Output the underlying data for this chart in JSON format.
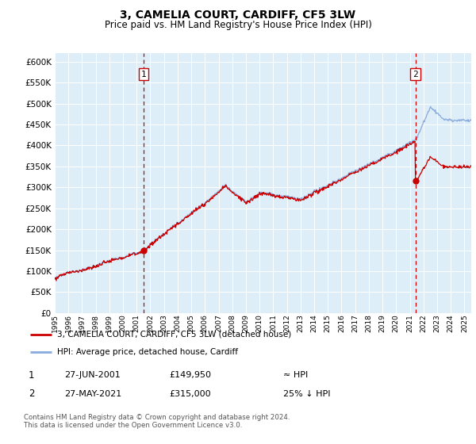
{
  "title": "3, CAMELIA COURT, CARDIFF, CF5 3LW",
  "subtitle": "Price paid vs. HM Land Registry's House Price Index (HPI)",
  "ylim": [
    0,
    620000
  ],
  "yticks": [
    0,
    50000,
    100000,
    150000,
    200000,
    250000,
    300000,
    350000,
    400000,
    450000,
    500000,
    550000,
    600000
  ],
  "sale1_date": 2001.49,
  "sale1_price": 149950,
  "sale2_date": 2021.41,
  "sale2_price": 315000,
  "hpi_line_color": "#88aadd",
  "sale_line_color": "#cc0000",
  "dashed_line_color": "#cc0000",
  "background_color": "#ddeef8",
  "legend_entry1": "3, CAMELIA COURT, CARDIFF, CF5 3LW (detached house)",
  "legend_entry2": "HPI: Average price, detached house, Cardiff",
  "footer": "Contains HM Land Registry data © Crown copyright and database right 2024.\nThis data is licensed under the Open Government Licence v3.0.",
  "xmin": 1995.0,
  "xmax": 2025.5
}
